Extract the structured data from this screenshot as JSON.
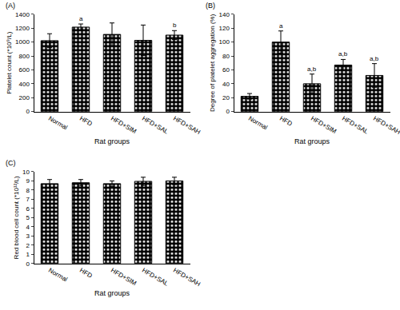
{
  "chart_data": [
    {
      "type": "bar",
      "title": "(A)",
      "x_label": "Rat groups",
      "y_label": "Platelet count (*10⁹/L)",
      "categories": [
        "Normal",
        "HFD",
        "HFD+SIM",
        "HFD+SAL",
        "HFD+SAH"
      ],
      "values": [
        1020,
        1215,
        1110,
        1025,
        1100
      ],
      "errors": [
        100,
        45,
        165,
        220,
        65
      ],
      "color": "#000000",
      "ylim": [
        0,
        1400
      ],
      "yticks": [
        0,
        200,
        400,
        600,
        800,
        1000,
        1200,
        1400
      ],
      "grid": false,
      "annotations": [
        {
          "category": "HFD",
          "text": "a"
        },
        {
          "category": "HFD+SAH",
          "text": "b"
        }
      ]
    },
    {
      "type": "bar",
      "title": "(B)",
      "x_label": "Rat groups",
      "y_label": "Degree of platelet aggregation (%)",
      "categories": [
        "Normal",
        "HFD",
        "HFD+SIM",
        "HFD+SAL",
        "HFD+SAH"
      ],
      "values": [
        22,
        100,
        40,
        67,
        52
      ],
      "errors": [
        4,
        16,
        14,
        8,
        17
      ],
      "color": "#000000",
      "ylim": [
        0,
        140
      ],
      "yticks": [
        0,
        20,
        40,
        60,
        80,
        100,
        120,
        140
      ],
      "grid": false,
      "annotations": [
        {
          "category": "HFD",
          "text": "a"
        },
        {
          "category": "HFD+SIM",
          "text": "a,b"
        },
        {
          "category": "HFD+SAL",
          "text": "a,b"
        },
        {
          "category": "HFD+SAH",
          "text": "a,b"
        }
      ]
    },
    {
      "type": "bar",
      "title": "(C)",
      "x_label": "Rat groups",
      "y_label": "Red blood cell count (*10¹²/L)",
      "categories": [
        "Normal",
        "HFD",
        "HFD+SIM",
        "HFD+SAL",
        "HFD+SAH"
      ],
      "values": [
        8.7,
        8.8,
        8.7,
        8.95,
        9.0
      ],
      "errors": [
        0.45,
        0.35,
        0.3,
        0.45,
        0.4
      ],
      "color": "#000000",
      "ylim": [
        0,
        10
      ],
      "yticks": [
        0,
        1,
        2,
        3,
        4,
        5,
        6,
        7,
        8,
        9,
        10
      ],
      "grid": false,
      "annotations": []
    }
  ]
}
